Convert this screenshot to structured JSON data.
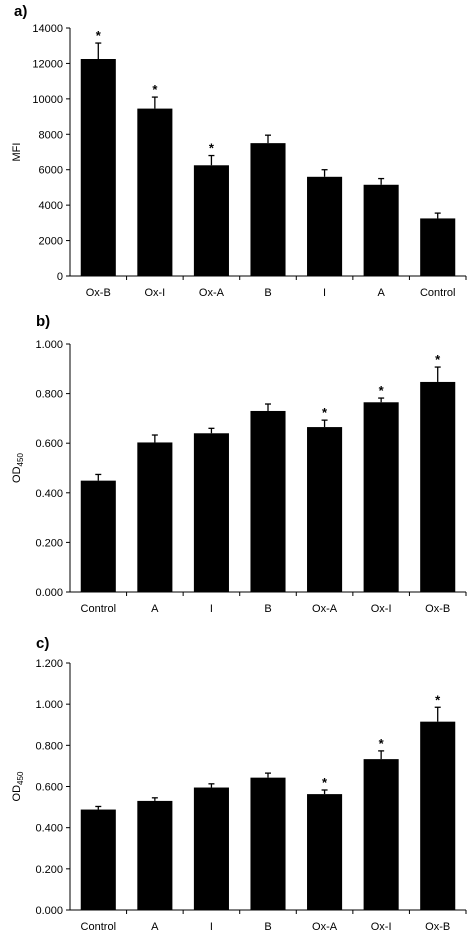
{
  "chart_data": [
    {
      "type": "bar",
      "panel_label": "a)",
      "ylabel": "MFI",
      "ylabel_sub": "",
      "categories": [
        "Ox-B",
        "Ox-I",
        "Ox-A",
        "B",
        "I",
        "A",
        "Control"
      ],
      "values": [
        12250,
        9450,
        6250,
        7500,
        5600,
        5150,
        3250
      ],
      "errors": [
        900,
        650,
        550,
        450,
        400,
        350,
        300
      ],
      "significant": [
        true,
        true,
        true,
        false,
        false,
        false,
        false
      ],
      "marker": "*",
      "ylim": [
        0,
        14000
      ],
      "yticks": [
        "0",
        "2000",
        "4000",
        "6000",
        "8000",
        "10000",
        "12000",
        "14000"
      ],
      "grid": false,
      "bar_color": "#000000"
    },
    {
      "type": "bar",
      "panel_label": "b)",
      "ylabel": "OD",
      "ylabel_sub": "450",
      "categories": [
        "Control",
        "A",
        "I",
        "B",
        "Ox-A",
        "Ox-I",
        "Ox-B"
      ],
      "values": [
        0.449,
        0.603,
        0.64,
        0.73,
        0.665,
        0.765,
        0.847
      ],
      "errors": [
        0.025,
        0.03,
        0.02,
        0.028,
        0.028,
        0.017,
        0.06
      ],
      "significant": [
        false,
        false,
        false,
        false,
        true,
        true,
        true
      ],
      "marker": "*",
      "ylim": [
        0,
        1.0
      ],
      "yticks": [
        "0.000",
        "0.200",
        "0.400",
        "0.600",
        "0.800",
        "1.000"
      ],
      "grid": false,
      "bar_color": "#000000"
    },
    {
      "type": "bar",
      "panel_label": "c)",
      "ylabel": "OD",
      "ylabel_sub": "450",
      "categories": [
        "Control",
        "A",
        "I",
        "B",
        "Ox-A",
        "Ox-I",
        "Ox-B"
      ],
      "values": [
        0.488,
        0.53,
        0.595,
        0.643,
        0.563,
        0.733,
        0.915
      ],
      "errors": [
        0.015,
        0.015,
        0.018,
        0.022,
        0.02,
        0.04,
        0.07
      ],
      "significant": [
        false,
        false,
        false,
        false,
        true,
        true,
        true
      ],
      "marker": "*",
      "ylim": [
        0,
        1.2
      ],
      "yticks": [
        "0.000",
        "0.200",
        "0.400",
        "0.600",
        "0.800",
        "1.000",
        "1.200"
      ],
      "grid": false,
      "bar_color": "#000000"
    }
  ]
}
